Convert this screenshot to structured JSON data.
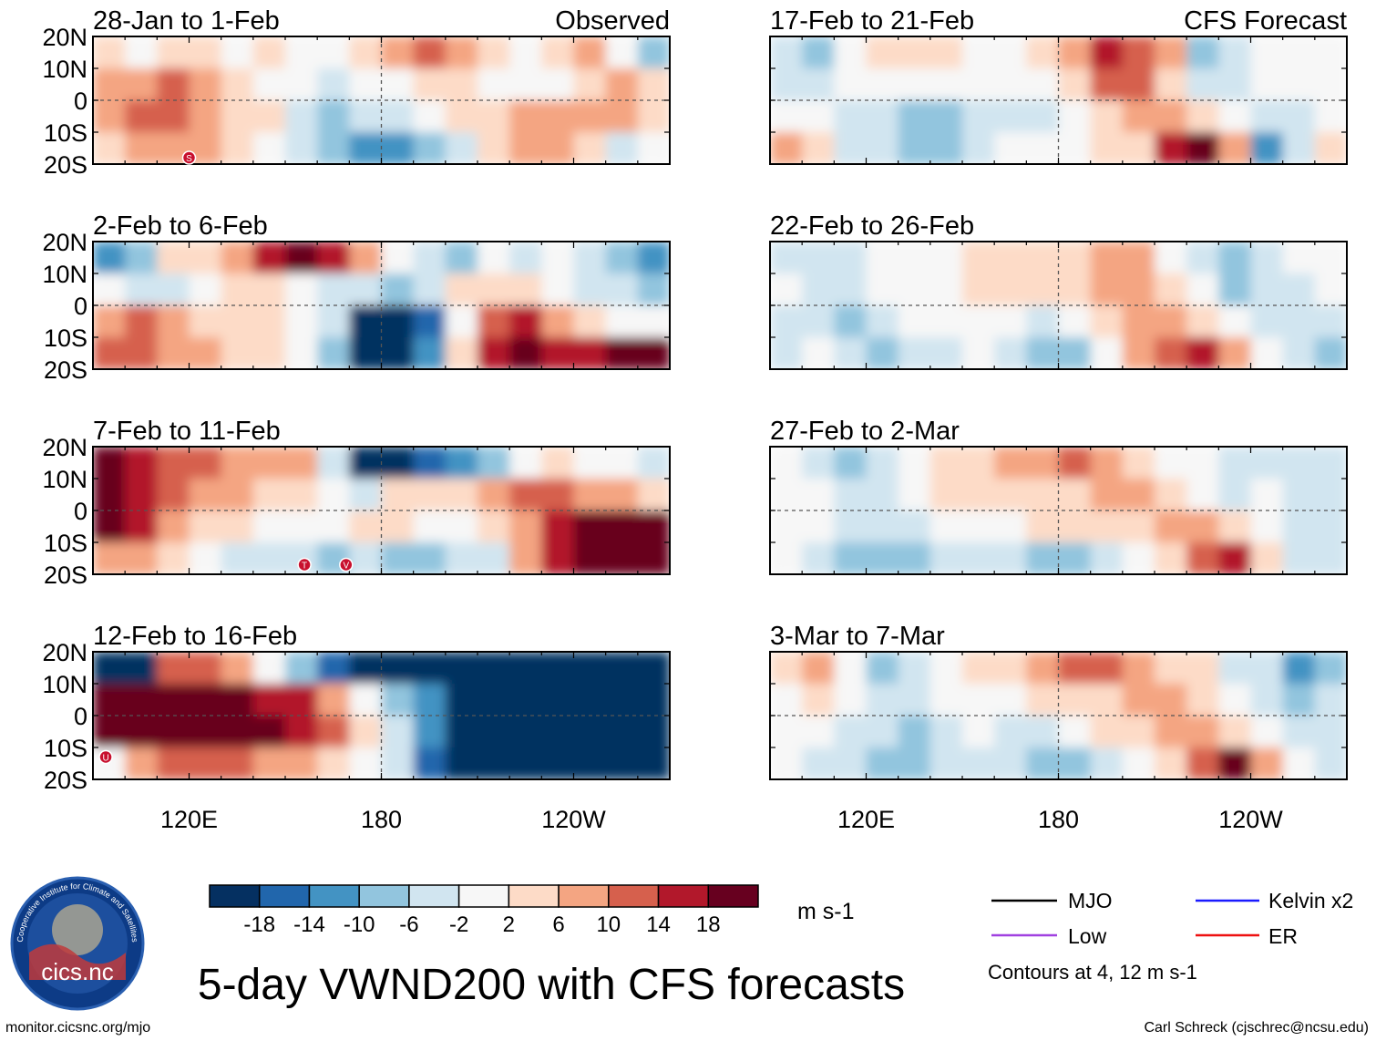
{
  "figure": {
    "title": "5-day VWND200 with CFS forecasts",
    "units": "m s-1",
    "url": "monitor.cicsnc.org/mjo",
    "credit": "Carl Schreck (cjschrec@ncsu.edu)",
    "logo": {
      "text": "cics.nc",
      "ring_text": "Cooperative Institute for Climate and Satellites"
    }
  },
  "chart_data": {
    "type": "heatmap",
    "variable": "200-hPa meridional wind anomaly (VWND200)",
    "lat_ticks": [
      "20N",
      "10N",
      "0",
      "10S",
      "20S"
    ],
    "lon_ticks": [
      "120E",
      "180",
      "120W"
    ],
    "lat_range": [
      -20,
      20
    ],
    "lon_range": [
      90,
      270
    ],
    "colorbar": {
      "ticks": [
        "-18",
        "-14",
        "-10",
        "-6",
        "-2",
        "2",
        "6",
        "10",
        "14",
        "18"
      ],
      "colors": [
        "#053061",
        "#2166ac",
        "#4393c3",
        "#92c5de",
        "#d1e5f0",
        "#f7f7f7",
        "#fddbc7",
        "#f4a582",
        "#d6604d",
        "#b2182b",
        "#67001f"
      ]
    },
    "panels": [
      {
        "id": "obs1",
        "column": "observed",
        "row": 0,
        "period": "28-Jan to 1-Feb",
        "label": "Observed",
        "cells": [
          [
            1,
            0,
            1,
            1,
            0,
            1,
            0,
            0,
            1,
            2,
            3,
            2,
            1,
            0,
            1,
            2,
            0,
            -2
          ],
          [
            2,
            2,
            3,
            2,
            1,
            0,
            0,
            -1,
            0,
            0,
            1,
            1,
            0,
            0,
            0,
            1,
            2,
            1
          ],
          [
            2,
            3,
            3,
            2,
            1,
            1,
            -1,
            -2,
            -1,
            -1,
            0,
            1,
            1,
            2,
            2,
            2,
            2,
            1
          ],
          [
            1,
            2,
            2,
            2,
            1,
            0,
            -1,
            -2,
            -3,
            -3,
            -2,
            -1,
            1,
            2,
            2,
            1,
            -1,
            0
          ]
        ],
        "storms": [
          {
            "lon": 120,
            "lat": -18,
            "letter": "S"
          }
        ]
      },
      {
        "id": "obs2",
        "column": "observed",
        "row": 1,
        "period": "2-Feb to 6-Feb",
        "label": "",
        "cells": [
          [
            -3,
            -2,
            1,
            1,
            2,
            4,
            5,
            4,
            2,
            0,
            -1,
            -2,
            0,
            -1,
            0,
            -1,
            -2,
            -3
          ],
          [
            0,
            -1,
            -1,
            0,
            1,
            1,
            0,
            -1,
            -1,
            -2,
            -1,
            1,
            1,
            1,
            0,
            -1,
            -1,
            -2
          ],
          [
            2,
            3,
            2,
            1,
            1,
            1,
            0,
            -1,
            -5,
            -5,
            -4,
            0,
            3,
            4,
            2,
            1,
            0,
            0
          ],
          [
            3,
            3,
            2,
            2,
            1,
            1,
            0,
            -2,
            -5,
            -5,
            -3,
            1,
            4,
            5,
            4,
            4,
            5,
            5
          ]
        ],
        "storms": []
      },
      {
        "id": "obs3",
        "column": "observed",
        "row": 2,
        "period": "7-Feb to 11-Feb",
        "label": "",
        "cells": [
          [
            5,
            4,
            3,
            3,
            2,
            2,
            2,
            -1,
            -5,
            -5,
            -4,
            -3,
            -2,
            0,
            1,
            0,
            0,
            -1
          ],
          [
            5,
            4,
            3,
            2,
            2,
            1,
            1,
            0,
            -1,
            1,
            1,
            1,
            2,
            3,
            3,
            2,
            2,
            1
          ],
          [
            5,
            4,
            2,
            1,
            1,
            0,
            0,
            0,
            1,
            1,
            0,
            0,
            1,
            2,
            4,
            5,
            5,
            5
          ],
          [
            2,
            2,
            1,
            0,
            -1,
            -1,
            -1,
            -2,
            -1,
            -2,
            -2,
            -1,
            -1,
            2,
            4,
            5,
            5,
            5
          ]
        ],
        "storms": [
          {
            "lon": 156,
            "lat": -17,
            "letter": "T"
          },
          {
            "lon": 169,
            "lat": -17,
            "letter": "V"
          }
        ]
      },
      {
        "id": "obs4",
        "column": "observed",
        "row": 3,
        "period": "12-Feb to 16-Feb",
        "label": "",
        "cells": [
          [
            -5,
            -5,
            3,
            3,
            2,
            0,
            -2,
            -4,
            -5,
            -5,
            -5,
            -5,
            -5,
            -5,
            -5,
            -5,
            -5,
            -5
          ],
          [
            5,
            5,
            5,
            5,
            5,
            4,
            4,
            2,
            0,
            -2,
            -3,
            -5,
            -5,
            -5,
            -5,
            -5,
            -5,
            -5
          ],
          [
            5,
            5,
            5,
            5,
            5,
            5,
            4,
            3,
            1,
            -1,
            -3,
            -5,
            -5,
            -5,
            -5,
            -5,
            -5,
            -5
          ],
          [
            0,
            2,
            3,
            3,
            3,
            2,
            2,
            1,
            0,
            -1,
            -4,
            -5,
            -5,
            -5,
            -5,
            -5,
            -5,
            -5
          ]
        ],
        "storms": [
          {
            "lon": 94,
            "lat": -13,
            "letter": "U"
          }
        ]
      },
      {
        "id": "fc1",
        "column": "forecast",
        "row": 0,
        "period": "17-Feb to 21-Feb",
        "label": "CFS Forecast",
        "cells": [
          [
            -1,
            -2,
            0,
            1,
            1,
            1,
            0,
            0,
            1,
            2,
            4,
            3,
            2,
            -2,
            -1,
            0,
            0,
            0
          ],
          [
            -1,
            -1,
            0,
            0,
            0,
            0,
            0,
            0,
            0,
            1,
            3,
            3,
            1,
            -1,
            -1,
            0,
            0,
            0
          ],
          [
            0,
            0,
            -1,
            -1,
            -2,
            -2,
            -1,
            -1,
            -1,
            0,
            1,
            2,
            2,
            1,
            0,
            -1,
            -1,
            0
          ],
          [
            2,
            1,
            -1,
            -1,
            -2,
            -2,
            -1,
            0,
            0,
            0,
            1,
            1,
            4,
            5,
            2,
            -3,
            -1,
            1
          ]
        ],
        "storms": []
      },
      {
        "id": "fc2",
        "column": "forecast",
        "row": 1,
        "period": "22-Feb to 26-Feb",
        "label": "",
        "cells": [
          [
            -1,
            -1,
            -1,
            0,
            0,
            0,
            1,
            1,
            1,
            1,
            2,
            2,
            0,
            -1,
            -2,
            -1,
            0,
            0
          ],
          [
            0,
            -1,
            -1,
            0,
            0,
            0,
            1,
            1,
            1,
            1,
            2,
            2,
            1,
            0,
            -2,
            -1,
            -1,
            0
          ],
          [
            -1,
            -1,
            -2,
            -1,
            0,
            0,
            0,
            0,
            -1,
            0,
            1,
            2,
            2,
            1,
            0,
            -1,
            -1,
            -1
          ],
          [
            -1,
            0,
            -1,
            -2,
            -1,
            -1,
            0,
            -1,
            -2,
            -2,
            0,
            2,
            3,
            4,
            2,
            0,
            -1,
            -2
          ]
        ],
        "storms": []
      },
      {
        "id": "fc3",
        "column": "forecast",
        "row": 2,
        "period": "27-Feb to 2-Mar",
        "label": "",
        "cells": [
          [
            0,
            -1,
            -2,
            -1,
            0,
            1,
            1,
            2,
            2,
            3,
            2,
            1,
            0,
            0,
            -1,
            -1,
            -1,
            -1
          ],
          [
            0,
            0,
            -1,
            -1,
            0,
            1,
            1,
            1,
            1,
            1,
            2,
            2,
            1,
            0,
            -1,
            0,
            -1,
            -1
          ],
          [
            0,
            0,
            -1,
            -1,
            -1,
            0,
            0,
            0,
            1,
            1,
            1,
            1,
            2,
            2,
            1,
            0,
            -1,
            -1
          ],
          [
            0,
            -1,
            -2,
            -2,
            -2,
            -1,
            -1,
            -1,
            -2,
            -2,
            -1,
            0,
            1,
            3,
            4,
            1,
            -1,
            -1
          ]
        ],
        "storms": []
      },
      {
        "id": "fc4",
        "column": "forecast",
        "row": 3,
        "period": "3-Mar to 7-Mar",
        "label": "",
        "cells": [
          [
            1,
            2,
            0,
            -2,
            -1,
            0,
            1,
            1,
            2,
            3,
            3,
            2,
            1,
            1,
            -1,
            -1,
            -3,
            -2
          ],
          [
            0,
            1,
            0,
            -1,
            -1,
            0,
            0,
            0,
            1,
            1,
            1,
            2,
            2,
            1,
            0,
            -1,
            -2,
            -1
          ],
          [
            0,
            0,
            -1,
            -1,
            -2,
            -1,
            0,
            -1,
            -1,
            0,
            1,
            1,
            2,
            2,
            1,
            0,
            -1,
            -1
          ],
          [
            0,
            -1,
            -1,
            -2,
            -2,
            -1,
            -1,
            -1,
            -2,
            -2,
            -1,
            0,
            1,
            3,
            5,
            2,
            0,
            -1
          ]
        ],
        "storms": []
      }
    ]
  },
  "legend": {
    "items": [
      {
        "key": "mjo",
        "label": "MJO",
        "color": "#000000"
      },
      {
        "key": "kelvin",
        "label": "Kelvin x2",
        "color": "#1a1aff"
      },
      {
        "key": "low",
        "label": "Low",
        "color": "#a040e0"
      },
      {
        "key": "er",
        "label": "ER",
        "color": "#ee1111"
      }
    ],
    "note": "Contours at 4, 12 m s-1"
  }
}
